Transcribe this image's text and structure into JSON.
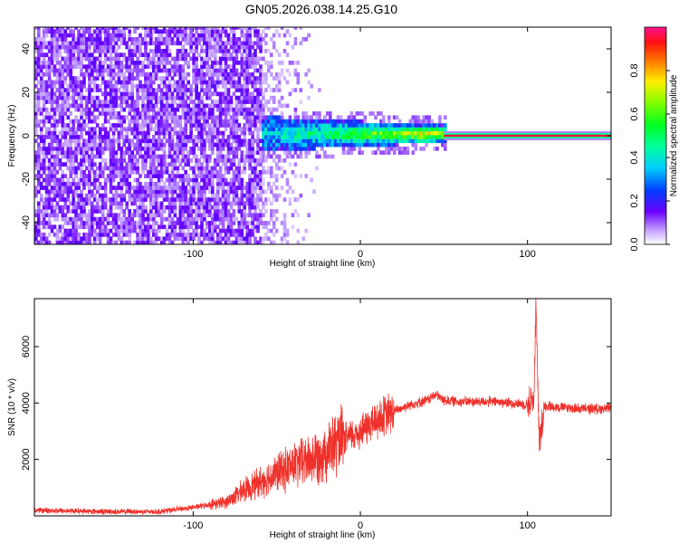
{
  "title": "GN05.2026.038.14.25.G10",
  "chart_data": [
    {
      "type": "heatmap",
      "name": "spectrogram",
      "xlabel": "Height of straight line (km)",
      "ylabel": "Frequency (Hz)",
      "xlim": [
        -195,
        150
      ],
      "ylim": [
        -50,
        50
      ],
      "xticks": [
        -100,
        0,
        100
      ],
      "yticks": [
        -40,
        -20,
        0,
        20,
        40
      ],
      "colorbar": {
        "label": "Normalized spectral amplitude",
        "range": [
          0,
          1
        ],
        "ticks": [
          0.0,
          0.2,
          0.4,
          0.6,
          0.8
        ]
      },
      "features": [
        {
          "region": "noise",
          "x_range": [
            -195,
            -60
          ],
          "freq_range": [
            -50,
            50
          ],
          "amplitude": 0.1
        },
        {
          "region": "fading-noise",
          "x_range": [
            -60,
            -25
          ],
          "freq_range": [
            -50,
            50
          ],
          "amplitude": 0.05
        },
        {
          "region": "signal-broad",
          "x_range": [
            -60,
            50
          ],
          "freq_range": [
            -8,
            8
          ],
          "amplitude": 0.35
        },
        {
          "region": "signal-line",
          "x_range": [
            50,
            150
          ],
          "freq_center": 0,
          "amplitude": 0.95
        }
      ]
    },
    {
      "type": "line",
      "name": "snr",
      "xlabel": "Height of straight line (km)",
      "ylabel": "SNR (10 * v/v)",
      "xlim": [
        -195,
        150
      ],
      "ylim": [
        0,
        7700
      ],
      "xticks": [
        -100,
        0,
        100
      ],
      "yticks": [
        2000,
        4000,
        6000
      ],
      "color": "#f0302a",
      "envelope": [
        {
          "x": -195,
          "y": 200
        },
        {
          "x": -150,
          "y": 150
        },
        {
          "x": -120,
          "y": 150
        },
        {
          "x": -100,
          "y": 300
        },
        {
          "x": -80,
          "y": 500
        },
        {
          "x": -70,
          "y": 900
        },
        {
          "x": -60,
          "y": 1200
        },
        {
          "x": -50,
          "y": 1500
        },
        {
          "x": -40,
          "y": 1800
        },
        {
          "x": -30,
          "y": 2000
        },
        {
          "x": -20,
          "y": 2300
        },
        {
          "x": -10,
          "y": 2700
        },
        {
          "x": 0,
          "y": 3000
        },
        {
          "x": 10,
          "y": 3400
        },
        {
          "x": 20,
          "y": 3700
        },
        {
          "x": 30,
          "y": 3950
        },
        {
          "x": 40,
          "y": 4100
        },
        {
          "x": 45,
          "y": 4300
        },
        {
          "x": 50,
          "y": 4100
        },
        {
          "x": 60,
          "y": 4050
        },
        {
          "x": 80,
          "y": 4050
        },
        {
          "x": 100,
          "y": 3950
        },
        {
          "x": 104,
          "y": 4200
        },
        {
          "x": 105,
          "y": 7700
        },
        {
          "x": 107,
          "y": 2500
        },
        {
          "x": 110,
          "y": 3900
        },
        {
          "x": 130,
          "y": 3800
        },
        {
          "x": 150,
          "y": 3800
        }
      ]
    }
  ]
}
